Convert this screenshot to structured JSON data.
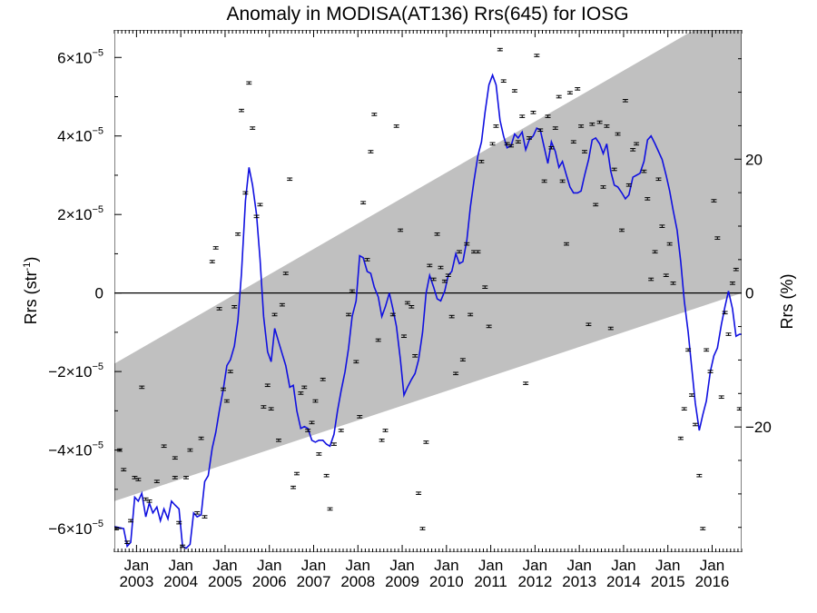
{
  "chart_data": {
    "type": "scatter",
    "title": "Anomaly in MODISA(AT136) Rrs(645) for IOSG",
    "ylabel_left": {
      "main": "Rrs (str",
      "sup": "-1",
      "close": ")"
    },
    "ylabel_right": "Rrs (%)",
    "x_range": [
      "2002-07-01",
      "2016-09-01"
    ],
    "x_tick_labels": [
      {
        "top": "Jan",
        "bottom": "2003"
      },
      {
        "top": "Jan",
        "bottom": "2004"
      },
      {
        "top": "Jan",
        "bottom": "2005"
      },
      {
        "top": "Jan",
        "bottom": "2006"
      },
      {
        "top": "Jan",
        "bottom": "2007"
      },
      {
        "top": "Jan",
        "bottom": "2008"
      },
      {
        "top": "Jan",
        "bottom": "2009"
      },
      {
        "top": "Jan",
        "bottom": "2010"
      },
      {
        "top": "Jan",
        "bottom": "2011"
      },
      {
        "top": "Jan",
        "bottom": "2012"
      },
      {
        "top": "Jan",
        "bottom": "2013"
      },
      {
        "top": "Jan",
        "bottom": "2014"
      },
      {
        "top": "Jan",
        "bottom": "2015"
      },
      {
        "top": "Jan",
        "bottom": "2016"
      }
    ],
    "y_left": {
      "range": [
        -6.6e-05,
        6.7e-05
      ],
      "ticks": [
        {
          "value": 6e-05,
          "mant": "6",
          "exp": "−5"
        },
        {
          "value": 4e-05,
          "mant": "4",
          "exp": "−5"
        },
        {
          "value": 2e-05,
          "mant": "2",
          "exp": "−5"
        },
        {
          "value": 0,
          "plain": "0"
        },
        {
          "value": -2e-05,
          "mant": "−2",
          "exp": "−5"
        },
        {
          "value": -4e-05,
          "mant": "−4",
          "exp": "−5"
        },
        {
          "value": -6e-05,
          "mant": "−6",
          "exp": "−5"
        }
      ]
    },
    "y_right": {
      "range": [
        -38.7,
        39.3
      ],
      "ticks": [
        {
          "value": 20,
          "label": "20"
        },
        {
          "value": 0,
          "label": "0"
        },
        {
          "value": -20,
          "label": "−20"
        }
      ]
    },
    "trend_band": {
      "upper": [
        [
          2002.5,
          -1.8e-05
        ],
        [
          2016.67,
          7.4e-05
        ]
      ],
      "lower": [
        [
          2002.5,
          -5.3e-05
        ],
        [
          2016.67,
          0
        ]
      ]
    },
    "zero_line": 0,
    "colors": {
      "band": "#c0c0c0",
      "line": "#1010e0",
      "points": "#000000",
      "axes": "#000000"
    },
    "monthly_points": [
      [
        2002.54,
        -6e-05
      ],
      [
        2002.62,
        -4e-05
      ],
      [
        2002.71,
        -4.5e-05
      ],
      [
        2002.79,
        -6.35e-05
      ],
      [
        2002.87,
        -5.8e-05
      ],
      [
        2002.96,
        -4.7e-05
      ],
      [
        2003.04,
        -4.75e-05
      ],
      [
        2003.12,
        -2.4e-05
      ],
      [
        2003.21,
        -5.25e-05
      ],
      [
        2003.29,
        -5.3e-05
      ],
      [
        2003.46,
        -4.8e-05
      ],
      [
        2003.62,
        -3.9e-05
      ],
      [
        2003.87,
        -4.7e-05
      ],
      [
        2003.87,
        -4.2e-05
      ],
      [
        2003.96,
        -5.85e-05
      ],
      [
        2004.04,
        -6.45e-05
      ],
      [
        2004.12,
        -4.7e-05
      ],
      [
        2004.21,
        -4e-05
      ],
      [
        2004.37,
        -5.6e-05
      ],
      [
        2004.46,
        -3.7e-05
      ],
      [
        2004.54,
        -5.7e-05
      ],
      [
        2004.71,
        8e-06
      ],
      [
        2004.79,
        1.15e-05
      ],
      [
        2004.87,
        -4e-06
      ],
      [
        2004.96,
        -2.45e-05
      ],
      [
        2005.04,
        -2.75e-05
      ],
      [
        2005.12,
        -2e-05
      ],
      [
        2005.21,
        -3.5e-06
      ],
      [
        2005.29,
        1.5e-05
      ],
      [
        2005.37,
        4.65e-05
      ],
      [
        2005.46,
        2.55e-05
      ],
      [
        2005.54,
        5.35e-05
      ],
      [
        2005.62,
        4.2e-05
      ],
      [
        2005.71,
        1.95e-05
      ],
      [
        2005.79,
        2.25e-05
      ],
      [
        2005.87,
        -2.9e-05
      ],
      [
        2005.96,
        -2.35e-05
      ],
      [
        2006.04,
        -2.95e-05
      ],
      [
        2006.12,
        -5.5e-06
      ],
      [
        2006.21,
        -3.75e-05
      ],
      [
        2006.29,
        -3e-06
      ],
      [
        2006.37,
        5e-06
      ],
      [
        2006.46,
        2.9e-05
      ],
      [
        2006.54,
        -4.95e-05
      ],
      [
        2006.62,
        -4.6e-05
      ],
      [
        2006.71,
        -2.55e-05
      ],
      [
        2006.79,
        -2.4e-05
      ],
      [
        2006.87,
        -3.5e-05
      ],
      [
        2006.96,
        -3.3e-05
      ],
      [
        2007.04,
        -2.75e-05
      ],
      [
        2007.12,
        -4.1e-05
      ],
      [
        2007.21,
        -2.2e-05
      ],
      [
        2007.29,
        -4.65e-05
      ],
      [
        2007.37,
        -5.5e-05
      ],
      [
        2007.46,
        -3.85e-05
      ],
      [
        2007.62,
        -3.5e-05
      ],
      [
        2007.79,
        -5.5e-06
      ],
      [
        2007.87,
        5e-07
      ],
      [
        2007.96,
        -1.75e-05
      ],
      [
        2008.04,
        -3.15e-05
      ],
      [
        2008.12,
        2.3e-05
      ],
      [
        2008.21,
        8.5e-06
      ],
      [
        2008.29,
        3.6e-05
      ],
      [
        2008.37,
        4.55e-05
      ],
      [
        2008.46,
        -1.2e-05
      ],
      [
        2008.54,
        -3.75e-05
      ],
      [
        2008.62,
        -3.5e-05
      ],
      [
        2008.79,
        -5.5e-06
      ],
      [
        2008.87,
        4.25e-05
      ],
      [
        2008.96,
        1.6e-05
      ],
      [
        2009.04,
        -1.1e-05
      ],
      [
        2009.12,
        -2.5e-06
      ],
      [
        2009.21,
        -3.5e-06
      ],
      [
        2009.29,
        -1.6e-05
      ],
      [
        2009.37,
        -5.1e-05
      ],
      [
        2009.46,
        -6e-05
      ],
      [
        2009.54,
        -3.8e-05
      ],
      [
        2009.62,
        7e-06
      ],
      [
        2009.71,
        3.5e-06
      ],
      [
        2009.79,
        1.5e-05
      ],
      [
        2009.87,
        6.5e-06
      ],
      [
        2009.96,
        3e-06
      ],
      [
        2010.04,
        4.5e-06
      ],
      [
        2010.12,
        -6e-06
      ],
      [
        2010.21,
        -2.05e-05
      ],
      [
        2010.29,
        1.05e-05
      ],
      [
        2010.37,
        -1.7e-05
      ],
      [
        2010.46,
        1.25e-05
      ],
      [
        2010.54,
        -5.5e-06
      ],
      [
        2010.62,
        1.05e-05
      ],
      [
        2010.71,
        1.05e-05
      ],
      [
        2010.79,
        3.35e-05
      ],
      [
        2010.87,
        1.5e-06
      ],
      [
        2010.96,
        -8.5e-06
      ],
      [
        2011.04,
        3.8e-05
      ],
      [
        2011.12,
        4.25e-05
      ],
      [
        2011.21,
        6.2e-05
      ],
      [
        2011.29,
        5.4e-05
      ],
      [
        2011.37,
        3.8e-05
      ],
      [
        2011.46,
        3.75e-05
      ],
      [
        2011.54,
        5.15e-05
      ],
      [
        2011.62,
        3.85e-05
      ],
      [
        2011.71,
        4.5e-05
      ],
      [
        2011.79,
        -2.3e-05
      ],
      [
        2011.87,
        3.95e-05
      ],
      [
        2011.96,
        4.6e-05
      ],
      [
        2012.04,
        6.05e-05
      ],
      [
        2012.12,
        4.15e-05
      ],
      [
        2012.21,
        2.85e-05
      ],
      [
        2012.29,
        4.5e-05
      ],
      [
        2012.37,
        3.7e-05
      ],
      [
        2012.46,
        4.2e-05
      ],
      [
        2012.54,
        5e-05
      ],
      [
        2012.62,
        2.85e-05
      ],
      [
        2012.71,
        1.25e-05
      ],
      [
        2012.79,
        5.1e-05
      ],
      [
        2012.87,
        3.85e-05
      ],
      [
        2012.96,
        5.2e-05
      ],
      [
        2013.04,
        4.25e-05
      ],
      [
        2013.12,
        3.6e-05
      ],
      [
        2013.21,
        -8e-06
      ],
      [
        2013.29,
        4.3e-05
      ],
      [
        2013.37,
        2.25e-05
      ],
      [
        2013.46,
        4.35e-05
      ],
      [
        2013.54,
        2.7e-05
      ],
      [
        2013.62,
        4.25e-05
      ],
      [
        2013.71,
        -9e-06
      ],
      [
        2013.79,
        3.15e-05
      ],
      [
        2013.87,
        4.05e-05
      ],
      [
        2013.96,
        1.6e-05
      ],
      [
        2014.04,
        4.9e-05
      ],
      [
        2014.12,
        2.75e-05
      ],
      [
        2014.21,
        3.65e-05
      ],
      [
        2014.29,
        3.8e-05
      ],
      [
        2014.46,
        3.1e-05
      ],
      [
        2014.54,
        2.4e-05
      ],
      [
        2014.62,
        3.5e-06
      ],
      [
        2014.71,
        1.05e-05
      ],
      [
        2014.79,
        2.9e-05
      ],
      [
        2014.87,
        1.7e-05
      ],
      [
        2014.96,
        4.5e-06
      ],
      [
        2015.04,
        1.25e-05
      ],
      [
        2015.12,
        2.5e-06
      ],
      [
        2015.29,
        -3.7e-05
      ],
      [
        2015.37,
        -2.95e-05
      ],
      [
        2015.46,
        -1.45e-05
      ],
      [
        2015.54,
        -2.6e-05
      ],
      [
        2015.62,
        -3.35e-05
      ],
      [
        2015.71,
        -4.65e-05
      ],
      [
        2015.79,
        -6e-05
      ],
      [
        2015.87,
        -1.45e-05
      ],
      [
        2015.96,
        -2e-05
      ],
      [
        2016.04,
        2.35e-05
      ],
      [
        2016.12,
        1.4e-05
      ],
      [
        2016.21,
        -2.65e-05
      ],
      [
        2016.29,
        -5e-06
      ],
      [
        2016.37,
        -1.05e-05
      ],
      [
        2016.46,
        2.5e-06
      ],
      [
        2016.54,
        6e-06
      ],
      [
        2016.62,
        -2.95e-05
      ]
    ],
    "smoothed_line": [
      [
        2002.5,
        -5.95e-05
      ],
      [
        2002.71,
        -6e-05
      ],
      [
        2002.79,
        -6.45e-05
      ],
      [
        2002.87,
        -6.35e-05
      ],
      [
        2002.96,
        -5.2e-05
      ],
      [
        2003.04,
        -5.3e-05
      ],
      [
        2003.12,
        -5.1e-05
      ],
      [
        2003.21,
        -5.7e-05
      ],
      [
        2003.29,
        -5.35e-05
      ],
      [
        2003.37,
        -5.6e-05
      ],
      [
        2003.46,
        -5.45e-05
      ],
      [
        2003.54,
        -5.8e-05
      ],
      [
        2003.62,
        -5.5e-05
      ],
      [
        2003.71,
        -5.75e-05
      ],
      [
        2003.79,
        -5.3e-05
      ],
      [
        2003.87,
        -5.4e-05
      ],
      [
        2003.96,
        -5.5e-05
      ],
      [
        2004.04,
        -6.45e-05
      ],
      [
        2004.12,
        -6.5e-05
      ],
      [
        2004.21,
        -6.4e-05
      ],
      [
        2004.29,
        -5.6e-05
      ],
      [
        2004.37,
        -5.7e-05
      ],
      [
        2004.46,
        -5.65e-05
      ],
      [
        2004.54,
        -4.8e-05
      ],
      [
        2004.62,
        -4.65e-05
      ],
      [
        2004.71,
        -3.95e-05
      ],
      [
        2004.79,
        -3.55e-05
      ],
      [
        2004.87,
        -3e-05
      ],
      [
        2004.96,
        -2.45e-05
      ],
      [
        2005.04,
        -1.85e-05
      ],
      [
        2005.12,
        -1.7e-05
      ],
      [
        2005.21,
        -1.35e-05
      ],
      [
        2005.29,
        -7e-06
      ],
      [
        2005.37,
        5e-06
      ],
      [
        2005.46,
        2.35e-05
      ],
      [
        2005.54,
        3.2e-05
      ],
      [
        2005.62,
        2.75e-05
      ],
      [
        2005.71,
        2e-05
      ],
      [
        2005.79,
        8.5e-06
      ],
      [
        2005.87,
        -6e-06
      ],
      [
        2005.96,
        -1.5e-05
      ],
      [
        2006.04,
        -1.75e-05
      ],
      [
        2006.12,
        -9e-06
      ],
      [
        2006.21,
        -1.25e-05
      ],
      [
        2006.29,
        -1.55e-05
      ],
      [
        2006.37,
        -1.85e-05
      ],
      [
        2006.46,
        -2.4e-05
      ],
      [
        2006.54,
        -2.35e-05
      ],
      [
        2006.62,
        -3e-05
      ],
      [
        2006.71,
        -3.45e-05
      ],
      [
        2006.79,
        -3.4e-05
      ],
      [
        2006.87,
        -3.45e-05
      ],
      [
        2006.96,
        -3.75e-05
      ],
      [
        2007.04,
        -3.8e-05
      ],
      [
        2007.12,
        -3.75e-05
      ],
      [
        2007.21,
        -3.75e-05
      ],
      [
        2007.29,
        -3.85e-05
      ],
      [
        2007.37,
        -3.9e-05
      ],
      [
        2007.46,
        -3.6e-05
      ],
      [
        2007.54,
        -3e-05
      ],
      [
        2007.62,
        -2.5e-05
      ],
      [
        2007.71,
        -2e-05
      ],
      [
        2007.79,
        -1.4e-05
      ],
      [
        2007.87,
        -6e-06
      ],
      [
        2007.96,
        -2e-06
      ],
      [
        2008.04,
        9.5e-06
      ],
      [
        2008.12,
        9e-06
      ],
      [
        2008.21,
        5.5e-06
      ],
      [
        2008.29,
        5e-06
      ],
      [
        2008.37,
        1.5e-06
      ],
      [
        2008.46,
        -1e-06
      ],
      [
        2008.54,
        -6e-06
      ],
      [
        2008.62,
        -3.5e-06
      ],
      [
        2008.71,
        0.0
      ],
      [
        2008.79,
        -4e-06
      ],
      [
        2008.87,
        -8.5e-06
      ],
      [
        2008.96,
        -1.7e-05
      ],
      [
        2009.04,
        -2.6e-05
      ],
      [
        2009.12,
        -2.4e-05
      ],
      [
        2009.21,
        -2.2e-05
      ],
      [
        2009.29,
        -2.05e-05
      ],
      [
        2009.37,
        -1.7e-05
      ],
      [
        2009.46,
        -1e-05
      ],
      [
        2009.54,
        0.0
      ],
      [
        2009.62,
        4.5e-06
      ],
      [
        2009.71,
        1.5e-06
      ],
      [
        2009.79,
        -1.5e-06
      ],
      [
        2009.87,
        -2e-06
      ],
      [
        2009.96,
        5e-07
      ],
      [
        2010.04,
        4.5e-06
      ],
      [
        2010.12,
        5.5e-06
      ],
      [
        2010.21,
        1e-05
      ],
      [
        2010.29,
        7.5e-06
      ],
      [
        2010.37,
        8e-06
      ],
      [
        2010.46,
        1.35e-05
      ],
      [
        2010.54,
        2.2e-05
      ],
      [
        2010.62,
        2.85e-05
      ],
      [
        2010.71,
        3.5e-05
      ],
      [
        2010.79,
        3.85e-05
      ],
      [
        2010.87,
        4.6e-05
      ],
      [
        2010.96,
        5.3e-05
      ],
      [
        2011.04,
        5.55e-05
      ],
      [
        2011.12,
        5.3e-05
      ],
      [
        2011.21,
        4.4e-05
      ],
      [
        2011.29,
        4e-05
      ],
      [
        2011.37,
        3.7e-05
      ],
      [
        2011.46,
        3.75e-05
      ],
      [
        2011.54,
        4.05e-05
      ],
      [
        2011.62,
        3.95e-05
      ],
      [
        2011.71,
        4.1e-05
      ],
      [
        2011.79,
        3.65e-05
      ],
      [
        2011.87,
        3.9e-05
      ],
      [
        2011.96,
        4e-05
      ],
      [
        2012.04,
        4.2e-05
      ],
      [
        2012.12,
        4.15e-05
      ],
      [
        2012.21,
        3.7e-05
      ],
      [
        2012.29,
        3.3e-05
      ],
      [
        2012.37,
        3.85e-05
      ],
      [
        2012.46,
        3.6e-05
      ],
      [
        2012.54,
        3.2e-05
      ],
      [
        2012.62,
        3.35e-05
      ],
      [
        2012.71,
        3e-05
      ],
      [
        2012.79,
        2.7e-05
      ],
      [
        2012.87,
        2.55e-05
      ],
      [
        2012.96,
        2.55e-05
      ],
      [
        2013.04,
        2.6e-05
      ],
      [
        2013.12,
        3e-05
      ],
      [
        2013.21,
        3.4e-05
      ],
      [
        2013.29,
        3.9e-05
      ],
      [
        2013.37,
        3.95e-05
      ],
      [
        2013.46,
        3.8e-05
      ],
      [
        2013.54,
        3.55e-05
      ],
      [
        2013.62,
        3.8e-05
      ],
      [
        2013.71,
        3.1e-05
      ],
      [
        2013.79,
        2.75e-05
      ],
      [
        2013.87,
        2.7e-05
      ],
      [
        2013.96,
        2.55e-05
      ],
      [
        2014.04,
        2.4e-05
      ],
      [
        2014.12,
        2.5e-05
      ],
      [
        2014.21,
        2.95e-05
      ],
      [
        2014.29,
        3e-05
      ],
      [
        2014.37,
        3.05e-05
      ],
      [
        2014.46,
        3.35e-05
      ],
      [
        2014.54,
        3.9e-05
      ],
      [
        2014.62,
        4e-05
      ],
      [
        2014.71,
        3.8e-05
      ],
      [
        2014.79,
        3.6e-05
      ],
      [
        2014.87,
        3.4e-05
      ],
      [
        2014.96,
        3e-05
      ],
      [
        2015.04,
        2.6e-05
      ],
      [
        2015.12,
        2.1e-05
      ],
      [
        2015.21,
        1.6e-05
      ],
      [
        2015.29,
        8e-06
      ],
      [
        2015.37,
        -2e-06
      ],
      [
        2015.46,
        -1e-05
      ],
      [
        2015.54,
        -1.9e-05
      ],
      [
        2015.62,
        -2.8e-05
      ],
      [
        2015.71,
        -3.5e-05
      ],
      [
        2015.79,
        -3.1e-05
      ],
      [
        2015.87,
        -2.75e-05
      ],
      [
        2015.96,
        -2e-05
      ],
      [
        2016.04,
        -1.6e-05
      ],
      [
        2016.12,
        -1.4e-05
      ],
      [
        2016.21,
        -8e-06
      ],
      [
        2016.29,
        -3.5e-06
      ],
      [
        2016.37,
        5e-07
      ],
      [
        2016.46,
        -4e-06
      ],
      [
        2016.54,
        -1.1e-05
      ],
      [
        2016.62,
        -1.05e-05
      ],
      [
        2016.67,
        -1.05e-05
      ]
    ]
  }
}
